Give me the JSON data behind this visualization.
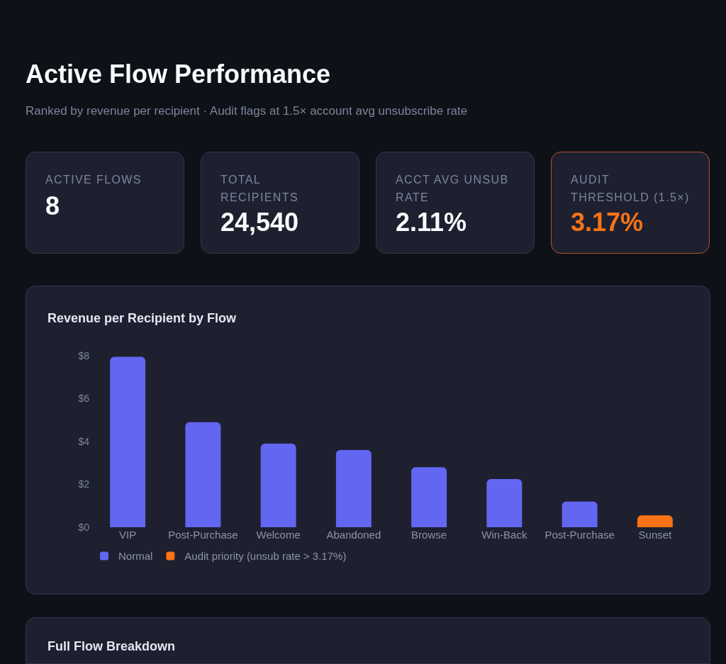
{
  "chart_data": [
    {
      "type": "other",
      "title": "Active Flow Performance",
      "subtitle": "Ranked by revenue per recipient · Audit flags at 1.5× account avg unsubscribe rate",
      "annotations": [
        "ACTIVE FLOWS",
        "8",
        "TOTAL RECIPIENTS",
        "24,540",
        "ACCT AVG UNSUB RATE",
        "2.11%",
        "AUDIT THRESHOLD (1.5×)",
        "3.17%"
      ],
      "colors": [
        "#f8fafc",
        "#f8fafc",
        "#f8fafc",
        "#f97316"
      ]
    },
    {
      "type": "bar",
      "title": "Revenue per Recipient by Flow",
      "categories": [
        "VIP",
        "Post-Purchase",
        "Welcome",
        "Abandoned",
        "Browse",
        "Win-Back",
        "Post-Purchase",
        "Sunset"
      ],
      "series": [
        {
          "name": "Normal",
          "color": "#6366f1",
          "values": [
            7.95,
            4.9,
            3.9,
            3.6,
            2.8,
            2.25,
            1.2,
            null
          ]
        },
        {
          "name": "Audit priority (unsub rate > 3.17%)",
          "color": "#f97316",
          "values": [
            null,
            null,
            null,
            null,
            null,
            null,
            null,
            0.55
          ]
        }
      ],
      "ylim": [
        0,
        8
      ],
      "yticks": [
        {
          "value": 0,
          "label": "$0"
        },
        {
          "value": 2,
          "label": "$2"
        },
        {
          "value": 4,
          "label": "$4"
        },
        {
          "value": 6,
          "label": "$6"
        },
        {
          "value": 8,
          "label": "$8"
        }
      ],
      "grid": false,
      "legend": "bottom left"
    },
    {
      "type": "other",
      "title": "Full Flow Breakdown"
    }
  ]
}
